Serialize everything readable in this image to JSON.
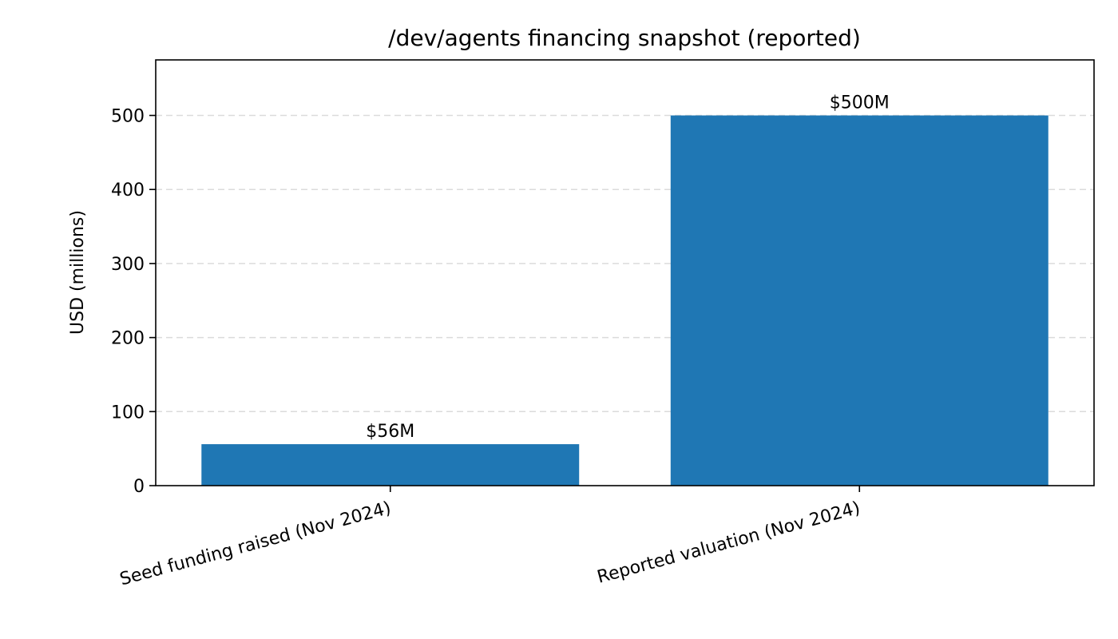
{
  "chart_data": {
    "type": "bar",
    "title": "/dev/agents financing snapshot (reported)",
    "xlabel": "",
    "ylabel": "USD (millions)",
    "categories": [
      "Seed funding raised (Nov 2024)",
      "Reported valuation (Nov 2024)"
    ],
    "values": [
      56,
      500
    ],
    "data_labels": [
      "$56M",
      "$500M"
    ],
    "ylim": [
      0,
      575
    ],
    "yticks": [
      0,
      100,
      200,
      300,
      400,
      500
    ],
    "grid": "y-dashed",
    "legend": "none",
    "bar_color": "#1f77b4"
  }
}
